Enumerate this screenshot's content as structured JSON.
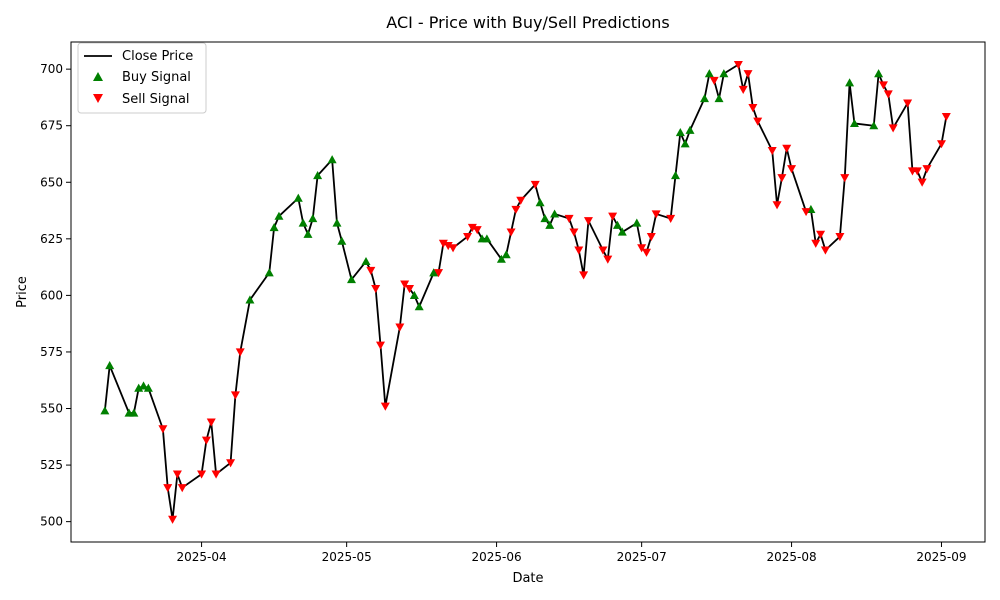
{
  "chart_data": {
    "type": "line",
    "title": "ACI - Price with Buy/Sell Predictions",
    "xlabel": "Date",
    "ylabel": "Price",
    "x_ticks": [
      "2025-04",
      "2025-05",
      "2025-06",
      "2025-07",
      "2025-08",
      "2025-09"
    ],
    "y_ticks": [
      500,
      525,
      550,
      575,
      600,
      625,
      650,
      675,
      700
    ],
    "xlim": [
      "2025-03-05",
      "2025-09-10"
    ],
    "ylim": [
      491,
      712
    ],
    "grid": false,
    "legend_position": "top-left",
    "legend": [
      "Close Price",
      "Buy Signal",
      "Sell Signal"
    ],
    "colors": {
      "close": "#000000",
      "buy": "#008000",
      "sell": "#ff0000"
    },
    "series": [
      {
        "name": "Close Price",
        "points": [
          [
            "2025-03-12",
            549
          ],
          [
            "2025-03-13",
            569
          ],
          [
            "2025-03-17",
            548
          ],
          [
            "2025-03-18",
            548
          ],
          [
            "2025-03-19",
            559
          ],
          [
            "2025-03-20",
            560
          ],
          [
            "2025-03-21",
            559
          ],
          [
            "2025-03-24",
            541
          ],
          [
            "2025-03-25",
            515
          ],
          [
            "2025-03-26",
            501
          ],
          [
            "2025-03-27",
            521
          ],
          [
            "2025-03-28",
            515
          ],
          [
            "2025-04-01",
            521
          ],
          [
            "2025-04-02",
            536
          ],
          [
            "2025-04-03",
            544
          ],
          [
            "2025-04-04",
            521
          ],
          [
            "2025-04-07",
            526
          ],
          [
            "2025-04-08",
            556
          ],
          [
            "2025-04-09",
            575
          ],
          [
            "2025-04-11",
            598
          ],
          [
            "2025-04-15",
            610
          ],
          [
            "2025-04-16",
            630
          ],
          [
            "2025-04-17",
            635
          ],
          [
            "2025-04-21",
            643
          ],
          [
            "2025-04-22",
            632
          ],
          [
            "2025-04-23",
            627
          ],
          [
            "2025-04-24",
            634
          ],
          [
            "2025-04-25",
            653
          ],
          [
            "2025-04-28",
            660
          ],
          [
            "2025-04-29",
            632
          ],
          [
            "2025-04-30",
            624
          ],
          [
            "2025-05-02",
            607
          ],
          [
            "2025-05-05",
            615
          ],
          [
            "2025-05-06",
            611
          ],
          [
            "2025-05-07",
            603
          ],
          [
            "2025-05-08",
            578
          ],
          [
            "2025-05-09",
            551
          ],
          [
            "2025-05-12",
            586
          ],
          [
            "2025-05-13",
            605
          ],
          [
            "2025-05-14",
            603
          ],
          [
            "2025-05-15",
            600
          ],
          [
            "2025-05-16",
            595
          ],
          [
            "2025-05-19",
            610
          ],
          [
            "2025-05-20",
            610
          ],
          [
            "2025-05-21",
            623
          ],
          [
            "2025-05-22",
            622
          ],
          [
            "2025-05-23",
            621
          ],
          [
            "2025-05-26",
            626
          ],
          [
            "2025-05-27",
            630
          ],
          [
            "2025-05-28",
            629
          ],
          [
            "2025-05-29",
            625
          ],
          [
            "2025-05-30",
            625
          ],
          [
            "2025-06-02",
            616
          ],
          [
            "2025-06-03",
            618
          ],
          [
            "2025-06-04",
            628
          ],
          [
            "2025-06-05",
            638
          ],
          [
            "2025-06-06",
            642
          ],
          [
            "2025-06-09",
            649
          ],
          [
            "2025-06-10",
            641
          ],
          [
            "2025-06-11",
            634
          ],
          [
            "2025-06-12",
            631
          ],
          [
            "2025-06-13",
            636
          ],
          [
            "2025-06-16",
            634
          ],
          [
            "2025-06-17",
            628
          ],
          [
            "2025-06-18",
            620
          ],
          [
            "2025-06-19",
            609
          ],
          [
            "2025-06-20",
            633
          ],
          [
            "2025-06-23",
            620
          ],
          [
            "2025-06-24",
            616
          ],
          [
            "2025-06-25",
            635
          ],
          [
            "2025-06-26",
            631
          ],
          [
            "2025-06-27",
            628
          ],
          [
            "2025-06-30",
            632
          ],
          [
            "2025-07-01",
            621
          ],
          [
            "2025-07-02",
            619
          ],
          [
            "2025-07-03",
            626
          ],
          [
            "2025-07-04",
            636
          ],
          [
            "2025-07-07",
            634
          ],
          [
            "2025-07-08",
            653
          ],
          [
            "2025-07-09",
            672
          ],
          [
            "2025-07-10",
            667
          ],
          [
            "2025-07-11",
            673
          ],
          [
            "2025-07-14",
            687
          ],
          [
            "2025-07-15",
            698
          ],
          [
            "2025-07-16",
            695
          ],
          [
            "2025-07-17",
            687
          ],
          [
            "2025-07-18",
            698
          ],
          [
            "2025-07-21",
            702
          ],
          [
            "2025-07-22",
            691
          ],
          [
            "2025-07-23",
            698
          ],
          [
            "2025-07-24",
            683
          ],
          [
            "2025-07-25",
            677
          ],
          [
            "2025-07-28",
            664
          ],
          [
            "2025-07-29",
            640
          ],
          [
            "2025-07-30",
            652
          ],
          [
            "2025-07-31",
            665
          ],
          [
            "2025-08-01",
            656
          ],
          [
            "2025-08-04",
            637
          ],
          [
            "2025-08-05",
            638
          ],
          [
            "2025-08-06",
            623
          ],
          [
            "2025-08-07",
            627
          ],
          [
            "2025-08-08",
            620
          ],
          [
            "2025-08-11",
            626
          ],
          [
            "2025-08-12",
            652
          ],
          [
            "2025-08-13",
            694
          ],
          [
            "2025-08-14",
            676
          ],
          [
            "2025-08-18",
            675
          ],
          [
            "2025-08-19",
            698
          ],
          [
            "2025-08-20",
            693
          ],
          [
            "2025-08-21",
            689
          ],
          [
            "2025-08-22",
            674
          ],
          [
            "2025-08-25",
            685
          ],
          [
            "2025-08-26",
            655
          ],
          [
            "2025-08-27",
            655
          ],
          [
            "2025-08-28",
            650
          ],
          [
            "2025-08-29",
            656
          ],
          [
            "2025-09-01",
            667
          ],
          [
            "2025-09-02",
            679
          ]
        ]
      },
      {
        "name": "Buy Signal",
        "points": [
          [
            "2025-03-12",
            549
          ],
          [
            "2025-03-13",
            569
          ],
          [
            "2025-03-17",
            548
          ],
          [
            "2025-03-18",
            548
          ],
          [
            "2025-03-19",
            559
          ],
          [
            "2025-03-20",
            560
          ],
          [
            "2025-03-21",
            559
          ],
          [
            "2025-04-11",
            598
          ],
          [
            "2025-04-15",
            610
          ],
          [
            "2025-04-16",
            630
          ],
          [
            "2025-04-17",
            635
          ],
          [
            "2025-04-21",
            643
          ],
          [
            "2025-04-22",
            632
          ],
          [
            "2025-04-23",
            627
          ],
          [
            "2025-04-24",
            634
          ],
          [
            "2025-04-25",
            653
          ],
          [
            "2025-04-28",
            660
          ],
          [
            "2025-04-29",
            632
          ],
          [
            "2025-04-30",
            624
          ],
          [
            "2025-05-02",
            607
          ],
          [
            "2025-05-05",
            615
          ],
          [
            "2025-05-15",
            600
          ],
          [
            "2025-05-16",
            595
          ],
          [
            "2025-05-19",
            610
          ],
          [
            "2025-05-29",
            625
          ],
          [
            "2025-05-30",
            625
          ],
          [
            "2025-06-02",
            616
          ],
          [
            "2025-06-03",
            618
          ],
          [
            "2025-06-10",
            641
          ],
          [
            "2025-06-11",
            634
          ],
          [
            "2025-06-12",
            631
          ],
          [
            "2025-06-13",
            636
          ],
          [
            "2025-06-26",
            631
          ],
          [
            "2025-06-27",
            628
          ],
          [
            "2025-06-30",
            632
          ],
          [
            "2025-07-08",
            653
          ],
          [
            "2025-07-09",
            672
          ],
          [
            "2025-07-10",
            667
          ],
          [
            "2025-07-11",
            673
          ],
          [
            "2025-07-14",
            687
          ],
          [
            "2025-07-15",
            698
          ],
          [
            "2025-07-17",
            687
          ],
          [
            "2025-07-18",
            698
          ],
          [
            "2025-08-05",
            638
          ],
          [
            "2025-08-13",
            694
          ],
          [
            "2025-08-14",
            676
          ],
          [
            "2025-08-18",
            675
          ],
          [
            "2025-08-19",
            698
          ]
        ]
      },
      {
        "name": "Sell Signal",
        "points": [
          [
            "2025-03-24",
            541
          ],
          [
            "2025-03-25",
            515
          ],
          [
            "2025-03-26",
            501
          ],
          [
            "2025-03-27",
            521
          ],
          [
            "2025-03-28",
            515
          ],
          [
            "2025-04-01",
            521
          ],
          [
            "2025-04-02",
            536
          ],
          [
            "2025-04-03",
            544
          ],
          [
            "2025-04-04",
            521
          ],
          [
            "2025-04-07",
            526
          ],
          [
            "2025-04-08",
            556
          ],
          [
            "2025-04-09",
            575
          ],
          [
            "2025-05-06",
            611
          ],
          [
            "2025-05-07",
            603
          ],
          [
            "2025-05-08",
            578
          ],
          [
            "2025-05-09",
            551
          ],
          [
            "2025-05-12",
            586
          ],
          [
            "2025-05-13",
            605
          ],
          [
            "2025-05-14",
            603
          ],
          [
            "2025-05-20",
            610
          ],
          [
            "2025-05-21",
            623
          ],
          [
            "2025-05-22",
            622
          ],
          [
            "2025-05-23",
            621
          ],
          [
            "2025-05-26",
            626
          ],
          [
            "2025-05-27",
            630
          ],
          [
            "2025-05-28",
            629
          ],
          [
            "2025-06-04",
            628
          ],
          [
            "2025-06-05",
            638
          ],
          [
            "2025-06-06",
            642
          ],
          [
            "2025-06-09",
            649
          ],
          [
            "2025-06-16",
            634
          ],
          [
            "2025-06-17",
            628
          ],
          [
            "2025-06-18",
            620
          ],
          [
            "2025-06-19",
            609
          ],
          [
            "2025-06-20",
            633
          ],
          [
            "2025-06-23",
            620
          ],
          [
            "2025-06-24",
            616
          ],
          [
            "2025-06-25",
            635
          ],
          [
            "2025-07-01",
            621
          ],
          [
            "2025-07-02",
            619
          ],
          [
            "2025-07-03",
            626
          ],
          [
            "2025-07-04",
            636
          ],
          [
            "2025-07-07",
            634
          ],
          [
            "2025-07-16",
            695
          ],
          [
            "2025-07-21",
            702
          ],
          [
            "2025-07-22",
            691
          ],
          [
            "2025-07-23",
            698
          ],
          [
            "2025-07-24",
            683
          ],
          [
            "2025-07-25",
            677
          ],
          [
            "2025-07-28",
            664
          ],
          [
            "2025-07-29",
            640
          ],
          [
            "2025-07-30",
            652
          ],
          [
            "2025-07-31",
            665
          ],
          [
            "2025-08-01",
            656
          ],
          [
            "2025-08-04",
            637
          ],
          [
            "2025-08-06",
            623
          ],
          [
            "2025-08-07",
            627
          ],
          [
            "2025-08-08",
            620
          ],
          [
            "2025-08-11",
            626
          ],
          [
            "2025-08-12",
            652
          ],
          [
            "2025-08-20",
            693
          ],
          [
            "2025-08-21",
            689
          ],
          [
            "2025-08-22",
            674
          ],
          [
            "2025-08-25",
            685
          ],
          [
            "2025-08-26",
            655
          ],
          [
            "2025-08-27",
            655
          ],
          [
            "2025-08-28",
            650
          ],
          [
            "2025-08-29",
            656
          ],
          [
            "2025-09-01",
            667
          ],
          [
            "2025-09-02",
            679
          ]
        ]
      }
    ]
  }
}
